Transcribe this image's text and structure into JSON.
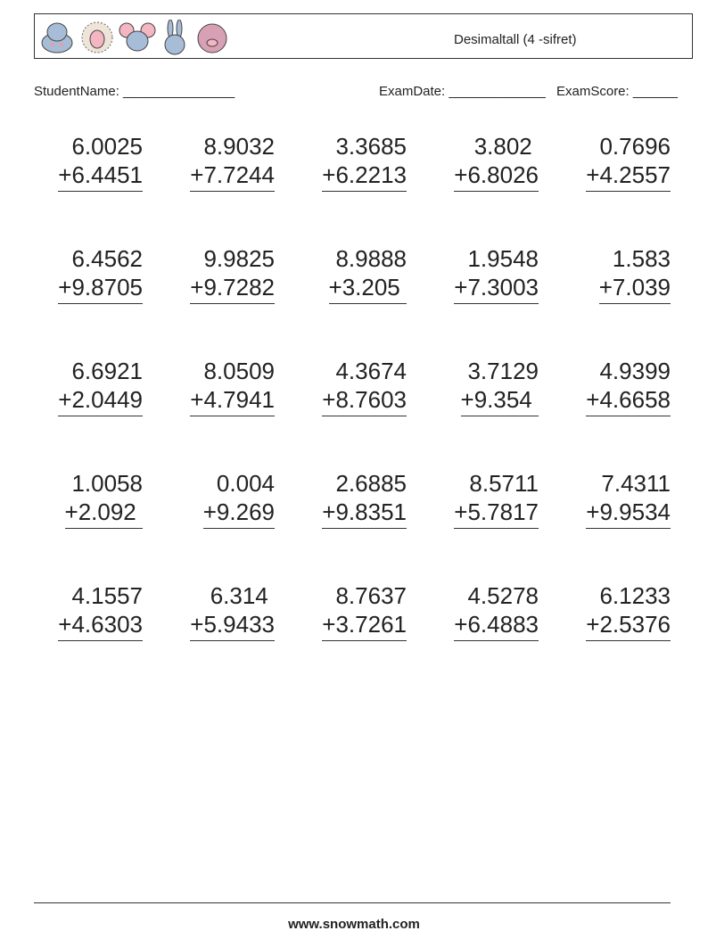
{
  "header": {
    "title": "Desimaltall (4 -sifret)",
    "animals": [
      "hippo-icon",
      "sheep-icon",
      "mouse-icon",
      "rabbit-icon",
      "pig-icon"
    ]
  },
  "fields": {
    "student_name": "StudentName: _______________",
    "exam_date": "ExamDate: _____________",
    "exam_score": "ExamScore: ______"
  },
  "problems": [
    [
      "6.0025",
      "+6.4451"
    ],
    [
      "8.9032",
      "+7.7244"
    ],
    [
      "3.3685",
      "+6.2213"
    ],
    [
      "3.802 ",
      "+6.8026"
    ],
    [
      "0.7696",
      "+4.2557"
    ],
    [
      "6.4562",
      "+9.8705"
    ],
    [
      "9.9825",
      "+9.7282"
    ],
    [
      "8.9888",
      "+3.205 "
    ],
    [
      "1.9548",
      "+7.3003"
    ],
    [
      "1.583",
      "+7.039"
    ],
    [
      "6.6921",
      "+2.0449"
    ],
    [
      "8.0509",
      "+4.7941"
    ],
    [
      "4.3674",
      "+8.7603"
    ],
    [
      "3.7129",
      "+9.354 "
    ],
    [
      "4.9399",
      "+4.6658"
    ],
    [
      "1.0058",
      "+2.092 "
    ],
    [
      "0.004",
      "+9.269"
    ],
    [
      "2.6885",
      "+9.8351"
    ],
    [
      "8.5711",
      "+5.7817"
    ],
    [
      "7.4311",
      "+9.9534"
    ],
    [
      "4.1557",
      "+4.6303"
    ],
    [
      "6.314 ",
      "+5.9433"
    ],
    [
      "8.7637",
      "+3.7261"
    ],
    [
      "4.5278",
      "+6.4883"
    ],
    [
      "6.1233",
      "+2.5376"
    ]
  ],
  "footer": "www.snowmath.com"
}
